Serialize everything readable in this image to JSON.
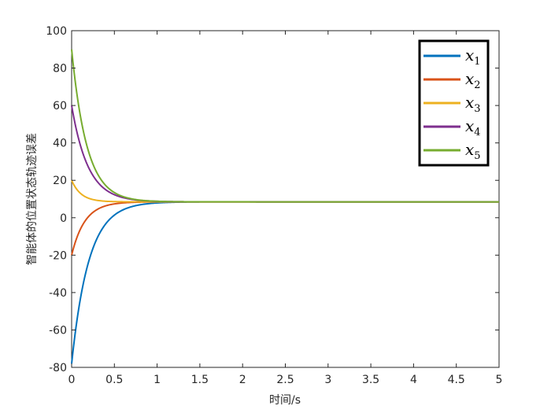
{
  "chart_data": {
    "type": "line",
    "title": "",
    "xlabel": "时间/s",
    "ylabel": "智能体的位置状态轨迹误差",
    "xlim": [
      0,
      5
    ],
    "ylim": [
      -80,
      100
    ],
    "xticks": [
      "0",
      "0.5",
      "1",
      "1.5",
      "2",
      "2.5",
      "3",
      "3.5",
      "4",
      "4.5",
      "5"
    ],
    "yticks": [
      "100",
      "80",
      "60",
      "40",
      "20",
      "0",
      "-20",
      "-40",
      "-60",
      "-80"
    ],
    "grid": false,
    "legend_position": "top-right",
    "steady_state": 8.5,
    "series": [
      {
        "name": "x1",
        "legend_base": "x",
        "legend_sub": "1",
        "color": "#0072BD",
        "initial": -78,
        "rate": 5.0
      },
      {
        "name": "x2",
        "legend_base": "x",
        "legend_sub": "2",
        "color": "#D95319",
        "initial": -20,
        "rate": 6.5
      },
      {
        "name": "x3",
        "legend_base": "x",
        "legend_sub": "3",
        "color": "#EDB120",
        "initial": 20,
        "rate": 9.0
      },
      {
        "name": "x4",
        "legend_base": "x",
        "legend_sub": "4",
        "color": "#7E2F8E",
        "initial": 60,
        "rate": 5.2
      },
      {
        "name": "x5",
        "legend_base": "x",
        "legend_sub": "5",
        "color": "#77AC30",
        "initial": 90,
        "rate": 5.6
      }
    ]
  }
}
